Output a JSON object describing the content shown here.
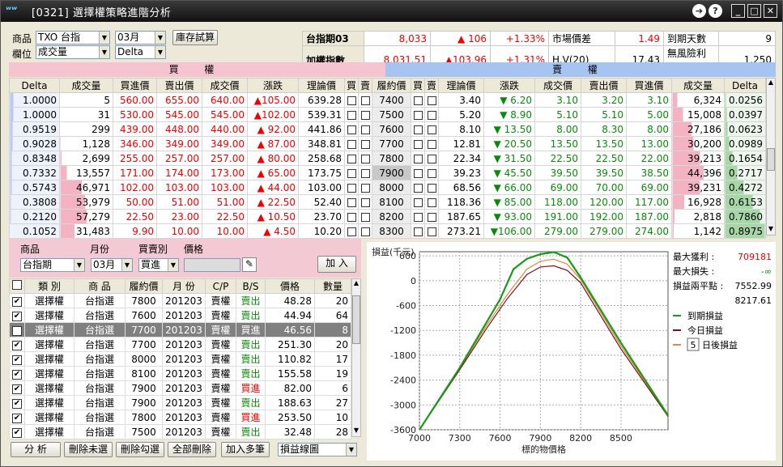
{
  "window": {
    "title": "[0321] 選擇權策略進階分析"
  },
  "filters": {
    "product_label": "商品",
    "product_value": "TXO 台指",
    "month_value": "03月",
    "stock_button": "庫存試算",
    "column_label": "欄位",
    "column_value": "成交量",
    "greek_value": "Delta"
  },
  "quote": {
    "r1": {
      "name": "台指期03",
      "price": "8,033",
      "chg": "106",
      "pct": "+1.33%",
      "k1": "市場價差",
      "v1": "1.49",
      "k2": "到期天數",
      "v2": "9"
    },
    "r2": {
      "name": "加權指數",
      "price": "8,031.51",
      "chg": "103.96",
      "pct": "+1.31%",
      "k1": "H.V(20)",
      "v1": "17.43",
      "k2": "無風險利率",
      "v2": "1.250"
    }
  },
  "sections": {
    "call": "買 權",
    "put": "賣 權"
  },
  "headers": [
    "Delta",
    "成交量",
    "買進價",
    "賣出價",
    "成交價",
    "漲跌",
    "理論價",
    "買",
    "賣",
    "履約價",
    "買",
    "賣",
    "理論價",
    "漲跌",
    "成交價",
    "賣出價",
    "買進價",
    "成交量",
    "Delta"
  ],
  "rows": [
    [
      "1.0000",
      "5",
      "560.00",
      "655.00",
      "640.00",
      "▲105.00",
      "639.28",
      "7400",
      "3.40",
      "▼ 6.20",
      "3.10",
      "3.20",
      "3.10",
      "6,324",
      "0.0256"
    ],
    [
      "1.0000",
      "31",
      "530.00",
      "545.00",
      "545.00",
      "▲102.00",
      "539.31",
      "7500",
      "5.20",
      "▼ 8.90",
      "5.10",
      "5.10",
      "5.00",
      "15,008",
      "0.0397"
    ],
    [
      "0.9519",
      "299",
      "439.00",
      "448.00",
      "440.00",
      "▲ 92.00",
      "441.86",
      "7600",
      "8.10",
      "▼ 13.50",
      "8.00",
      "8.30",
      "8.00",
      "27,186",
      "0.0623"
    ],
    [
      "0.9028",
      "1,128",
      "346.00",
      "349.00",
      "349.00",
      "▲ 87.00",
      "348.81",
      "7700",
      "12.81",
      "▼ 20.50",
      "13.50",
      "13.50",
      "13.00",
      "30,200",
      "0.0989"
    ],
    [
      "0.8348",
      "2,699",
      "255.00",
      "257.00",
      "257.00",
      "▲ 80.00",
      "258.68",
      "7800",
      "22.34",
      "▼ 31.50",
      "22.50",
      "22.50",
      "22.00",
      "39,213",
      "0.1654"
    ],
    [
      "0.7332",
      "13,557",
      "171.00",
      "174.00",
      "173.00",
      "▲ 65.00",
      "173.75",
      "7900",
      "39.23",
      "▼ 45.50",
      "39.50",
      "39.50",
      "38.50",
      "44,396",
      "0.2717"
    ],
    [
      "0.5743",
      "46,971",
      "102.00",
      "103.00",
      "103.00",
      "▲ 44.00",
      "103.00",
      "8000",
      "68.56",
      "▼ 66.00",
      "69.00",
      "70.00",
      "69.00",
      "39,231",
      "0.4272"
    ],
    [
      "0.3808",
      "53,979",
      "50.00",
      "51.00",
      "51.00",
      "▲ 22.50",
      "52.40",
      "8100",
      "118.36",
      "▼ 85.00",
      "118.00",
      "120.00",
      "117.00",
      "16,928",
      "0.6153"
    ],
    [
      "0.2120",
      "57,279",
      "22.50",
      "23.00",
      "22.50",
      "▲ 10.50",
      "23.70",
      "8200",
      "187.65",
      "▼ 93.00",
      "191.00",
      "192.00",
      "187.00",
      "2,818",
      "0.7860"
    ],
    [
      "0.1052",
      "31,483",
      "9.90",
      "10.00",
      "10.00",
      "▲ 4.50",
      "10.20",
      "8300",
      "273.21",
      "▼106.00",
      "279.00",
      "279.00",
      "274.00",
      "1,142",
      "0.8975"
    ]
  ],
  "entry": {
    "labels": [
      "商品",
      "月份",
      "買賣別",
      "價格"
    ],
    "product": "台指期",
    "month": "03月",
    "side": "買進",
    "add_button": "加 入"
  },
  "orders_headers": [
    "類 別",
    "商 品",
    "履約價",
    "月 份",
    "C/P",
    "B/S",
    "價格",
    "數量"
  ],
  "orders": [
    [
      "選擇權",
      "台指選",
      "7800",
      "201203",
      "賣權",
      "賣出",
      "48.28",
      "20"
    ],
    [
      "選擇權",
      "台指選",
      "7600",
      "201203",
      "賣權",
      "賣出",
      "44.94",
      "64"
    ],
    [
      "選擇權",
      "台指選",
      "7700",
      "201203",
      "賣權",
      "買進",
      "46.56",
      "8"
    ],
    [
      "選擇權",
      "台指選",
      "7700",
      "201203",
      "賣權",
      "賣出",
      "251.30",
      "20"
    ],
    [
      "選擇權",
      "台指選",
      "8000",
      "201203",
      "賣權",
      "賣出",
      "110.82",
      "17"
    ],
    [
      "選擇權",
      "台指選",
      "8100",
      "201203",
      "賣權",
      "賣出",
      "155.58",
      "19"
    ],
    [
      "選擇權",
      "台指選",
      "7900",
      "201203",
      "賣權",
      "買進",
      "82.00",
      "6"
    ],
    [
      "選擇權",
      "台指選",
      "7900",
      "201203",
      "賣權",
      "賣出",
      "188.63",
      "27"
    ],
    [
      "選擇權",
      "台指選",
      "7800",
      "201203",
      "賣權",
      "買進",
      "253.50",
      "10"
    ],
    [
      "選擇權",
      "台指選",
      "7500",
      "201203",
      "賣權",
      "賣出",
      "32.48",
      "28"
    ]
  ],
  "bottom": {
    "analyze": "分 析",
    "del_unchecked": "刪除未選",
    "del_checked": "刪除勾選",
    "del_all": "全部刪除",
    "add_multi": "加入多筆",
    "view": "損益線圖"
  },
  "stats": {
    "max_profit_label": "最大獲利 :",
    "max_profit": "709181",
    "max_loss_label": "最大損失 :",
    "max_loss": "-∞",
    "breakeven_label": "損益兩平點 :",
    "breakeven1": "7552.99",
    "breakeven2": "8217.61",
    "legend1": "到期損益",
    "legend2": "今日損益",
    "legend3_value": "5",
    "legend3": "日後損益"
  },
  "colors": {
    "expiry": "#1a9a1a",
    "today": "#7a1020",
    "days": "#e08a3a"
  },
  "chart_data": {
    "type": "line",
    "ylabel": "損益(千元)",
    "xlabel": "標的物價格",
    "x_ticks": [
      7000,
      7300,
      7600,
      7900,
      8200,
      8500
    ],
    "y_ticks": [
      600,
      0,
      -600,
      -1200,
      -1800,
      -2400,
      -3000,
      -3600
    ],
    "xlim": [
      7000,
      8850
    ],
    "ylim": [
      -3600,
      700
    ],
    "series": [
      {
        "name": "到期損益",
        "x": [
          7000,
          7300,
          7500,
          7600,
          7700,
          7800,
          7900,
          8000,
          8100,
          8200,
          8500,
          8850
        ],
        "y": [
          -3600,
          -2100,
          -1000,
          -450,
          280,
          530,
          640,
          690,
          560,
          80,
          -1500,
          -3250
        ]
      },
      {
        "name": "今日損益",
        "x": [
          7000,
          7300,
          7500,
          7650,
          7800,
          7900,
          8000,
          8100,
          8200,
          8500,
          8850
        ],
        "y": [
          -3600,
          -2150,
          -1150,
          -450,
          150,
          330,
          360,
          250,
          -50,
          -1650,
          -3280
        ]
      },
      {
        "name": "日後損益",
        "x": [
          7000,
          7300,
          7500,
          7650,
          7800,
          7900,
          8000,
          8100,
          8200,
          8500,
          8850
        ],
        "y": [
          -3600,
          -2120,
          -1080,
          -350,
          280,
          470,
          520,
          400,
          30,
          -1580,
          -3260
        ]
      }
    ]
  }
}
